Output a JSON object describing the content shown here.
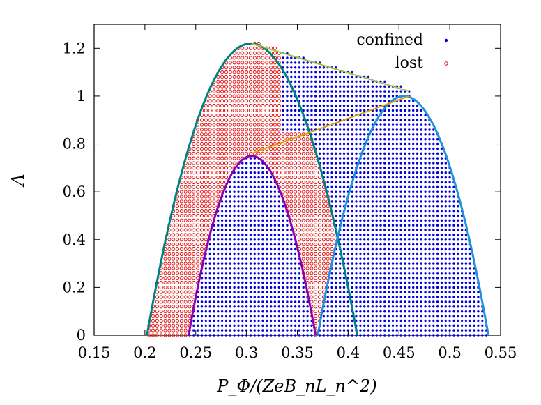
{
  "chart_data": {
    "type": "scatter",
    "xlabel": "P_Φ/(ZeB_nL_n^2)",
    "ylabel": "Λ",
    "xlim": [
      0.15,
      0.55
    ],
    "ylim": [
      0,
      1.3
    ],
    "x_ticks": [
      "0.15",
      "0.2",
      "0.25",
      "0.3",
      "0.35",
      "0.4",
      "0.45",
      "0.5",
      "0.55"
    ],
    "y_ticks": [
      "0",
      "0.2",
      "0.4",
      "0.6",
      "0.8",
      "1",
      "1.2"
    ],
    "grid": false,
    "legend_position": "top-right",
    "series": [
      {
        "name": "confined",
        "marker": "filled-dot",
        "color": "#0000e0",
        "region": "points inside the envelope, mostly for P_Φ ≥ 0.33 plus the region inside the inner parabola (Λ ≤ 0.75, 0.243 ≤ P_Φ ≤ 0.368)"
      },
      {
        "name": "lost",
        "marker": "open-circle",
        "color": "#e00000",
        "region": "points inside the left envelope (0.202 ≤ P_Φ ≲ 0.35) outside the inner parabola"
      }
    ],
    "boundary_curves": [
      {
        "color": "#008080",
        "description": "left parabola",
        "x": [
          0.202,
          0.304,
          0.409
        ],
        "y": [
          0,
          1.22,
          0
        ]
      },
      {
        "color": "#9000b0",
        "description": "inner parabola",
        "x": [
          0.243,
          0.305,
          0.368
        ],
        "y": [
          0,
          0.75,
          0
        ]
      },
      {
        "color": "#2090e0",
        "description": "right parabola",
        "x": [
          0.37,
          0.455,
          0.538
        ],
        "y": [
          0,
          1.0,
          0
        ]
      },
      {
        "color": "#e0a000",
        "description": "connecting line",
        "x": [
          0.305,
          0.46
        ],
        "y": [
          0.76,
          1.0
        ]
      },
      {
        "color": "#a0c040",
        "description": "top line",
        "x": [
          0.305,
          0.46
        ],
        "y": [
          1.22,
          1.02
        ]
      }
    ]
  }
}
